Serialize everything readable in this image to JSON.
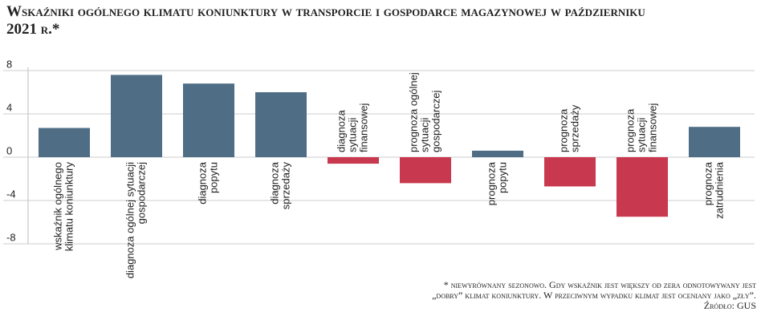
{
  "chart_data": {
    "type": "bar",
    "title": "Wskaźniki ogólnego klimatu koniunktury w transporcie i gospodarce magazynowej w październiku 2021 r.*",
    "categories": [
      [
        "wskaźnik ogólnego",
        "klimatu koniunktury"
      ],
      [
        "diagnoza ogólnej sytuacji",
        "gospodarczej"
      ],
      [
        "diagnoza",
        "popytu"
      ],
      [
        "diagnoza",
        "sprzedaży"
      ],
      [
        "diagnoza",
        "sytuacji",
        "finansowej"
      ],
      [
        "prognoza ogólnej",
        "sytuacji",
        "gospodarczej"
      ],
      [
        "prognoza",
        "popytu"
      ],
      [
        "prognoza",
        "sprzedaży"
      ],
      [
        "prognoza",
        "sytuacji",
        "finansowej"
      ],
      [
        "prognoza",
        "zatrudnienia"
      ]
    ],
    "values": [
      2.7,
      7.6,
      6.8,
      6.0,
      -0.6,
      -2.4,
      0.6,
      -2.7,
      -5.5,
      2.8
    ],
    "positive_color": "#4f6d85",
    "negative_color": "#c8384f",
    "ylim": [
      -8,
      8
    ],
    "yticks": [
      -8,
      -4,
      0,
      4,
      8
    ],
    "grid": true,
    "footnote": [
      "* niewyrównany sezonowo. Gdy wskaźnik jest większy od zera odnotowywany jest",
      "„dobry” klimat koniunktury. W przeciwnym wypadku klimat jest oceniany jako „zły”.",
      "Źródło: GUS"
    ]
  }
}
